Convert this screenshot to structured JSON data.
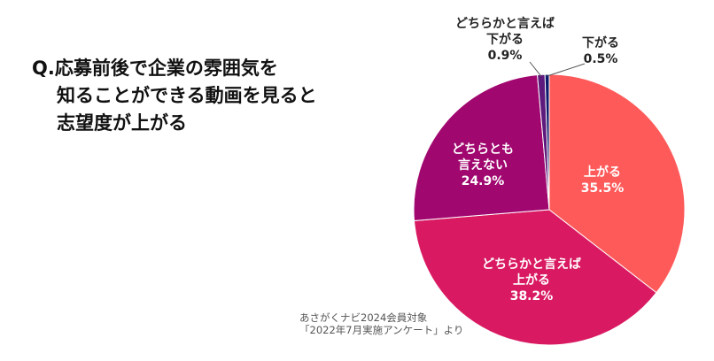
{
  "question": {
    "line1": "Q.応募前後で企業の雰囲気を",
    "line2": "知ることができる動画を見ると",
    "line3": "志望度が上がる"
  },
  "note": {
    "line1": "あさがくナビ2024会員対象",
    "line2": "「2022年7月実施アンケート」より"
  },
  "chart_data": {
    "type": "pie",
    "title": "Q.応募前後で企業の雰囲気を知ることができる動画を見ると志望度が上がる",
    "start": "top",
    "direction": "clockwise",
    "slices": [
      {
        "label_lines": [
          "上がる"
        ],
        "value": 35.5,
        "value_label": "35.5%",
        "color": "#FF5A5A"
      },
      {
        "label_lines": [
          "どちらかと言えば",
          "上がる"
        ],
        "value": 38.2,
        "value_label": "38.2%",
        "color": "#D91A62"
      },
      {
        "label_lines": [
          "どちらとも",
          "言えない"
        ],
        "value": 24.9,
        "value_label": "24.9%",
        "color": "#A1086F"
      },
      {
        "label_lines": [
          "どちらかと言えば",
          "下がる"
        ],
        "value": 0.9,
        "value_label": "0.9%",
        "color": "#5E1A7C"
      },
      {
        "label_lines": [
          "下がる"
        ],
        "value": 0.5,
        "value_label": "0.5%",
        "color": "#0B1A6C"
      }
    ]
  }
}
